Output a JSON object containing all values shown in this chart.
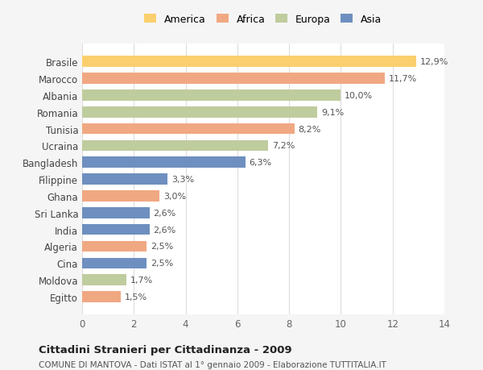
{
  "categories": [
    "Brasile",
    "Marocco",
    "Albania",
    "Romania",
    "Tunisia",
    "Ucraina",
    "Bangladesh",
    "Filippine",
    "Ghana",
    "Sri Lanka",
    "India",
    "Algeria",
    "Cina",
    "Moldova",
    "Egitto"
  ],
  "values": [
    12.9,
    11.7,
    10.0,
    9.1,
    8.2,
    7.2,
    6.3,
    3.3,
    3.0,
    2.6,
    2.6,
    2.5,
    2.5,
    1.7,
    1.5
  ],
  "labels": [
    "12,9%",
    "11,7%",
    "10,0%",
    "9,1%",
    "8,2%",
    "7,2%",
    "6,3%",
    "3,3%",
    "3,0%",
    "2,6%",
    "2,6%",
    "2,5%",
    "2,5%",
    "1,7%",
    "1,5%"
  ],
  "colors": [
    "#FBCF6E",
    "#F0A882",
    "#BFCC9E",
    "#BFCC9E",
    "#F0A882",
    "#BFCC9E",
    "#6E8FBF",
    "#6E8FBF",
    "#F0A882",
    "#6E8FBF",
    "#6E8FBF",
    "#F0A882",
    "#6E8FBF",
    "#BFCC9E",
    "#F0A882"
  ],
  "continent_labels": [
    "America",
    "Africa",
    "Europa",
    "Asia"
  ],
  "continent_colors": [
    "#FBCF6E",
    "#F0A882",
    "#BFCC9E",
    "#6E8FBF"
  ],
  "xlim": [
    0,
    14
  ],
  "xticks": [
    0,
    2,
    4,
    6,
    8,
    10,
    12,
    14
  ],
  "title": "Cittadini Stranieri per Cittadinanza - 2009",
  "subtitle": "COMUNE DI MANTOVA - Dati ISTAT al 1° gennaio 2009 - Elaborazione TUTTITALIA.IT",
  "background_color": "#f5f5f5",
  "bar_background": "#ffffff",
  "grid_color": "#dddddd"
}
